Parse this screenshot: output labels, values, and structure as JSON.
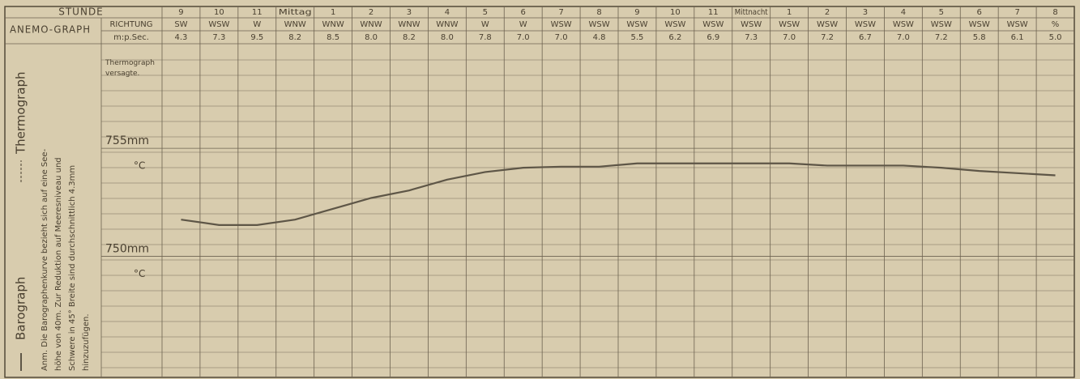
{
  "chart_data": {
    "type": "line",
    "categories": [
      "9",
      "10",
      "11",
      "Mittag",
      "1",
      "2",
      "3",
      "4",
      "5",
      "6",
      "7",
      "8",
      "9",
      "10",
      "11",
      "Mittnacht",
      "1",
      "2",
      "3",
      "4",
      "5",
      "6",
      "7",
      "8"
    ],
    "hour_label": "STUNDE",
    "anemograph": {
      "label": "ANEMO-GRAPH",
      "direction_label": "RICHTUNG",
      "speed_label": "m:p.Sec.",
      "directions": [
        "SW",
        "WSW",
        "W",
        "WNW",
        "WNW",
        "WNW",
        "WNW",
        "WNW",
        "W",
        "W",
        "WSW",
        "WSW",
        "WSW",
        "WSW",
        "WSW",
        "WSW",
        "WSW",
        "WSW",
        "WSW",
        "WSW",
        "WSW",
        "WSW",
        "WSW",
        "%"
      ],
      "speeds": [
        "4.3",
        "7.3",
        "9.5",
        "8.2",
        "8.5",
        "8.0",
        "8.2",
        "8.0",
        "7.8",
        "7.0",
        "7.0",
        "4.8",
        "5.5",
        "6.2",
        "6.9",
        "7.3",
        "7.0",
        "7.2",
        "6.7",
        "7.0",
        "7.2",
        "5.8",
        "6.1",
        "5.0"
      ]
    },
    "series": [
      {
        "name": "Barograph",
        "color": "#5e5647",
        "values": [
          751.7,
          751.45,
          751.45,
          751.7,
          752.2,
          752.7,
          753.05,
          753.55,
          753.9,
          754.1,
          754.15,
          754.15,
          754.3,
          754.3,
          754.3,
          754.3,
          754.3,
          754.2,
          754.2,
          754.2,
          754.1,
          753.95,
          753.85,
          753.75
        ]
      }
    ],
    "thermograph_label": "Thermograph",
    "ylim": [
      744.4,
      759.8
    ],
    "yticks": [
      {
        "value": 755,
        "label": "755mm"
      },
      {
        "value": 750,
        "label": "750mm"
      }
    ],
    "annotations": [
      "Thermograph versagte.",
      "°C",
      "°C"
    ],
    "note": [
      "Anm. Die Barographenkurve bezieht sich auf eine See-",
      "höhe von 40m. Zur Reduktion auf Meeresniveau und",
      "Schwere in 45° Breite sind durchschnittlich 4.3mm",
      "hinzuzufügen."
    ]
  }
}
